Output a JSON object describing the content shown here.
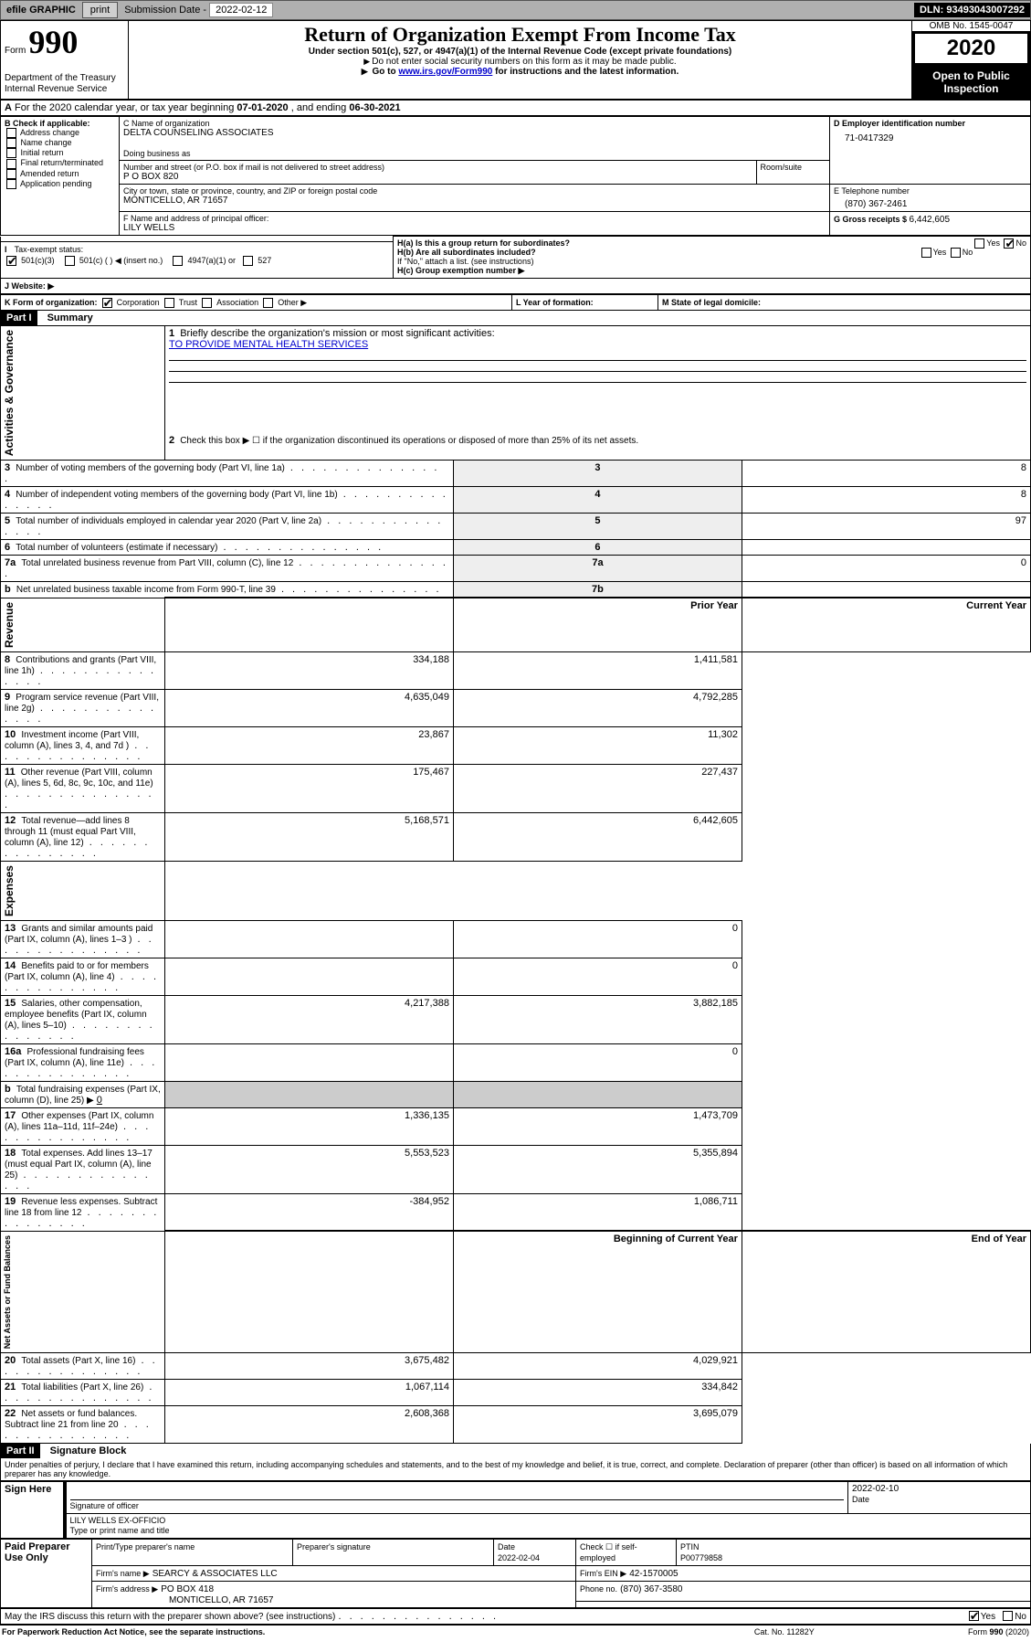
{
  "toolbar": {
    "efile_label": "efile GRAPHIC",
    "print_label": "print",
    "submission_label": "Submission Date - ",
    "submission_date": "2022-02-12",
    "dln_label": "DLN: ",
    "dln": "93493043007292"
  },
  "header": {
    "form_word": "Form",
    "form_number": "990",
    "title": "Return of Organization Exempt From Income Tax",
    "subtitle": "Under section 501(c), 527, or 4947(a)(1) of the Internal Revenue Code (except private foundations)",
    "note1": "Do not enter social security numbers on this form as it may be made public.",
    "note2_pre": "Go to ",
    "note2_link": "www.irs.gov/Form990",
    "note2_post": " for instructions and the latest information.",
    "dept": "Department of the Treasury\nInternal Revenue Service",
    "omb": "OMB No. 1545-0047",
    "year": "2020",
    "inspect": "Open to Public Inspection"
  },
  "line_a": {
    "text": "For the 2020 calendar year, or tax year beginning ",
    "begin": "07-01-2020",
    "mid": " , and ending ",
    "end": "06-30-2021"
  },
  "box_b": {
    "label": "B Check if applicable:",
    "items": [
      "Address change",
      "Name change",
      "Initial return",
      "Final return/terminated",
      "Amended return",
      "Application pending"
    ]
  },
  "box_c": {
    "name_label": "C Name of organization",
    "name": "DELTA COUNSELING ASSOCIATES",
    "dba_label": "Doing business as",
    "dba": "",
    "street_label": "Number and street (or P.O. box if mail is not delivered to street address)",
    "room_label": "Room/suite",
    "street": "P O BOX 820",
    "city_label": "City or town, state or province, country, and ZIP or foreign postal code",
    "city": "MONTICELLO, AR  71657"
  },
  "box_d": {
    "label": "D Employer identification number",
    "value": "71-0417329"
  },
  "box_e": {
    "label": "E Telephone number",
    "value": "(870) 367-2461"
  },
  "box_g": {
    "label": "G Gross receipts $ ",
    "value": "6,442,605"
  },
  "box_f": {
    "label": "F  Name and address of principal officer:",
    "name": "LILY WELLS"
  },
  "box_h": {
    "a_label": "H(a)  Is this a group return for subordinates?",
    "b_label": "H(b)  Are all subordinates included?",
    "b_note": "If \"No,\" attach a list. (see instructions)",
    "c_label": "H(c)  Group exemption number ▶",
    "yes": "Yes",
    "no": "No",
    "a_yes": false,
    "a_no": true,
    "b_yes": false,
    "b_no": false
  },
  "tax_status": {
    "label": "Tax-exempt status:",
    "o501c3": "501(c)(3)",
    "o501c": "501(c) (  ) ◀ (insert no.)",
    "o4947": "4947(a)(1) or",
    "o527": "527"
  },
  "box_j": {
    "label": "J   Website: ▶",
    "value": ""
  },
  "box_k": {
    "label": "K Form of organization:",
    "corp": "Corporation",
    "trust": "Trust",
    "assoc": "Association",
    "other": "Other ▶"
  },
  "box_l": {
    "label": "L Year of formation:",
    "value": ""
  },
  "box_m": {
    "label": "M State of legal domicile:",
    "value": ""
  },
  "part1": {
    "tag": "Part I",
    "title": "Summary"
  },
  "summary": {
    "sections": {
      "gov": "Activities & Governance",
      "rev": "Revenue",
      "exp": "Expenses",
      "net": "Net Assets or Fund Balances"
    },
    "q1": "Briefly describe the organization's mission or most significant activities:",
    "mission": "TO PROVIDE MENTAL HEALTH SERVICES",
    "q2": "Check this box ▶ ☐  if the organization discontinued its operations or disposed of more than 25% of its net assets.",
    "rows_gov": [
      {
        "n": "3",
        "t": "Number of voting members of the governing body (Part VI, line 1a)",
        "id": "3",
        "v": "8"
      },
      {
        "n": "4",
        "t": "Number of independent voting members of the governing body (Part VI, line 1b)",
        "id": "4",
        "v": "8"
      },
      {
        "n": "5",
        "t": "Total number of individuals employed in calendar year 2020 (Part V, line 2a)",
        "id": "5",
        "v": "97"
      },
      {
        "n": "6",
        "t": "Total number of volunteers (estimate if necessary)",
        "id": "6",
        "v": ""
      },
      {
        "n": "7a",
        "t": "Total unrelated business revenue from Part VIII, column (C), line 12",
        "id": "7a",
        "v": "0"
      },
      {
        "n": "b",
        "t": "Net unrelated business taxable income from Form 990-T, line 39",
        "id": "7b",
        "v": ""
      }
    ],
    "hdr_prior": "Prior Year",
    "hdr_curr": "Current Year",
    "rows_rev": [
      {
        "n": "8",
        "t": "Contributions and grants (Part VIII, line 1h)",
        "p": "334,188",
        "c": "1,411,581"
      },
      {
        "n": "9",
        "t": "Program service revenue (Part VIII, line 2g)",
        "p": "4,635,049",
        "c": "4,792,285"
      },
      {
        "n": "10",
        "t": "Investment income (Part VIII, column (A), lines 3, 4, and 7d )",
        "p": "23,867",
        "c": "11,302"
      },
      {
        "n": "11",
        "t": "Other revenue (Part VIII, column (A), lines 5, 6d, 8c, 9c, 10c, and 11e)",
        "p": "175,467",
        "c": "227,437"
      },
      {
        "n": "12",
        "t": "Total revenue—add lines 8 through 11 (must equal Part VIII, column (A), line 12)",
        "p": "5,168,571",
        "c": "6,442,605"
      }
    ],
    "rows_exp": [
      {
        "n": "13",
        "t": "Grants and similar amounts paid (Part IX, column (A), lines 1–3 )",
        "p": "",
        "c": "0"
      },
      {
        "n": "14",
        "t": "Benefits paid to or for members (Part IX, column (A), line 4)",
        "p": "",
        "c": "0"
      },
      {
        "n": "15",
        "t": "Salaries, other compensation, employee benefits (Part IX, column (A), lines 5–10)",
        "p": "4,217,388",
        "c": "3,882,185"
      },
      {
        "n": "16a",
        "t": "Professional fundraising fees (Part IX, column (A), line 11e)",
        "p": "",
        "c": "0"
      },
      {
        "n": "b",
        "t": "Total fundraising expenses (Part IX, column (D), line 25) ▶",
        "p": "grey",
        "c": "grey",
        "inline": "0"
      },
      {
        "n": "17",
        "t": "Other expenses (Part IX, column (A), lines 11a–11d, 11f–24e)",
        "p": "1,336,135",
        "c": "1,473,709"
      },
      {
        "n": "18",
        "t": "Total expenses. Add lines 13–17 (must equal Part IX, column (A), line 25)",
        "p": "5,553,523",
        "c": "5,355,894"
      },
      {
        "n": "19",
        "t": "Revenue less expenses. Subtract line 18 from line 12",
        "p": "-384,952",
        "c": "1,086,711"
      }
    ],
    "hdr_begin": "Beginning of Current Year",
    "hdr_end": "End of Year",
    "rows_net": [
      {
        "n": "20",
        "t": "Total assets (Part X, line 16)",
        "p": "3,675,482",
        "c": "4,029,921"
      },
      {
        "n": "21",
        "t": "Total liabilities (Part X, line 26)",
        "p": "1,067,114",
        "c": "334,842"
      },
      {
        "n": "22",
        "t": "Net assets or fund balances. Subtract line 21 from line 20",
        "p": "2,608,368",
        "c": "3,695,079"
      }
    ]
  },
  "part2": {
    "tag": "Part II",
    "title": "Signature Block"
  },
  "perjury": "Under penalties of perjury, I declare that I have examined this return, including accompanying schedules and statements, and to the best of my knowledge and belief, it is true, correct, and complete. Declaration of preparer (other than officer) is based on all information of which preparer has any knowledge.",
  "sign": {
    "here": "Sign Here",
    "sig_label": "Signature of officer",
    "date_label": "Date",
    "date": "2022-02-10",
    "name": "LILY WELLS  EX-OFFICIO",
    "name_label": "Type or print name and title"
  },
  "preparer": {
    "here": "Paid Preparer Use Only",
    "name_label": "Print/Type preparer's name",
    "sig_label": "Preparer's signature",
    "date_label": "Date",
    "date": "2022-02-04",
    "self_label": "Check ☐ if self-employed",
    "ptin_label": "PTIN",
    "ptin": "P00779858",
    "firm_name_label": "Firm's name   ▶",
    "firm_name": "SEARCY & ASSOCIATES LLC",
    "firm_ein_label": "Firm's EIN ▶",
    "firm_ein": "42-1570005",
    "firm_addr_label": "Firm's address ▶",
    "firm_addr1": "PO BOX 418",
    "firm_addr2": "MONTICELLO, AR  71657",
    "phone_label": "Phone no.",
    "phone": "(870) 367-3580"
  },
  "discuss": {
    "text": "May the IRS discuss this return with the preparer shown above? (see instructions)",
    "yes": "Yes",
    "no": "No",
    "yes_checked": true,
    "no_checked": false
  },
  "footer": {
    "left": "For Paperwork Reduction Act Notice, see the separate instructions.",
    "mid": "Cat. No. 11282Y",
    "right": "Form 990 (2020)"
  }
}
